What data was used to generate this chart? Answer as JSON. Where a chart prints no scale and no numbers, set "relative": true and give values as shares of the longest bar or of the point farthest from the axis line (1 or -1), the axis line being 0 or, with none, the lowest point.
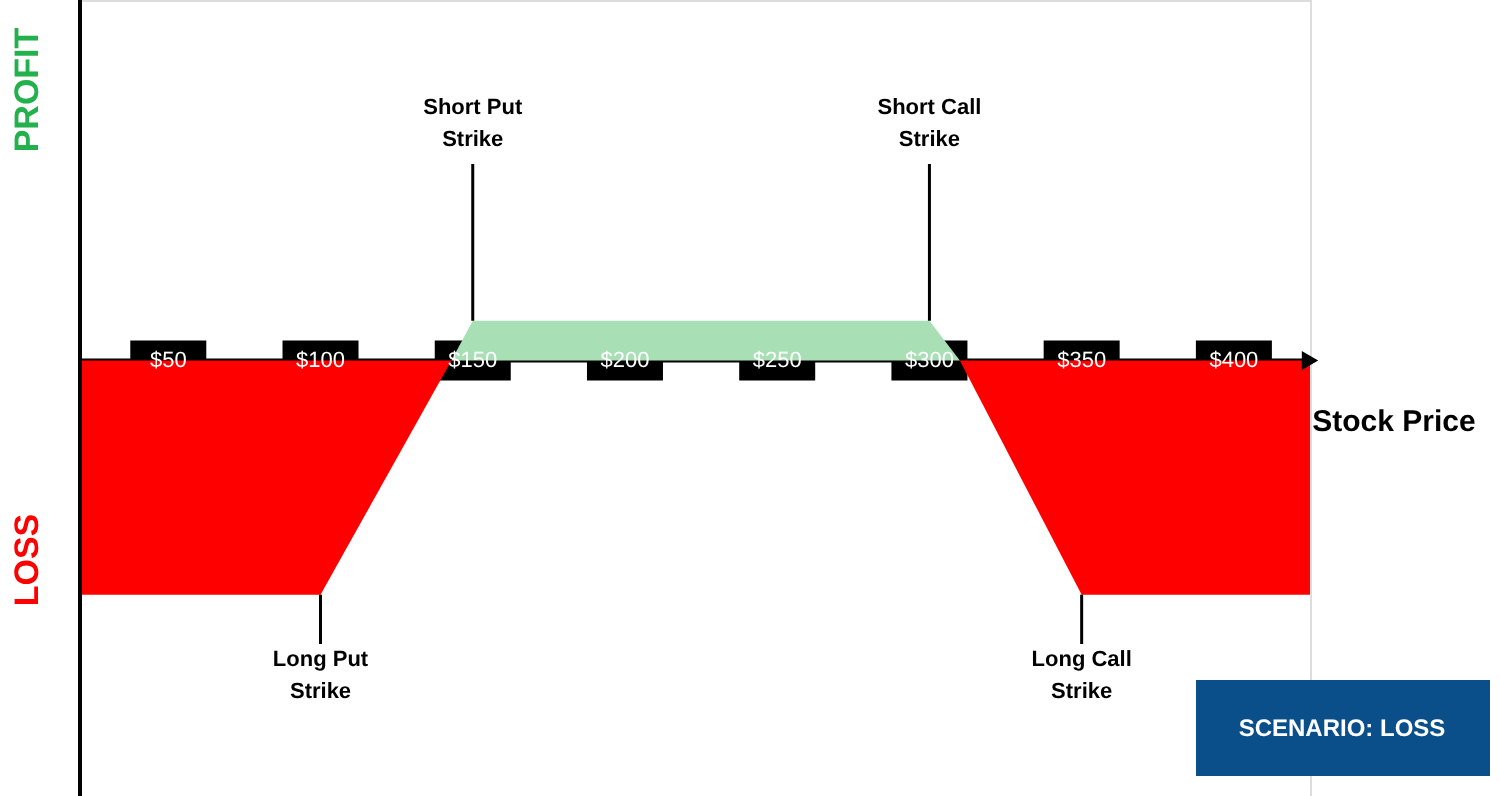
{
  "chart_data": {
    "type": "area",
    "relative": true,
    "xlabel": "Stock Price",
    "xlim": [
      21,
      425
    ],
    "xticks": [
      {
        "value": 50,
        "label": "$50"
      },
      {
        "value": 100,
        "label": "$100"
      },
      {
        "value": 150,
        "label": "$150"
      },
      {
        "value": 200,
        "label": "$200"
      },
      {
        "value": 250,
        "label": "$250"
      },
      {
        "value": 300,
        "label": "$300"
      },
      {
        "value": 350,
        "label": "$350"
      },
      {
        "value": 400,
        "label": "$400"
      }
    ],
    "series": [
      {
        "color": "#ff0000",
        "x": [
          21,
          100,
          143
        ],
        "values": [
          -1,
          -1,
          0
        ]
      },
      {
        "color": "#a9dfb5",
        "x": [
          143,
          150,
          300,
          310
        ],
        "values": [
          0,
          0.17,
          0.17,
          0
        ]
      },
      {
        "color": "#ff0000",
        "x": [
          310,
          350,
          425
        ],
        "values": [
          0,
          -1,
          -1
        ]
      }
    ],
    "annotations": [
      "PROFIT",
      "LOSS",
      "SCENARIO: LOSS",
      {
        "text": "Short Put Strike",
        "x": 150,
        "y": 0.17
      },
      {
        "text": "Short Call Strike",
        "x": 300,
        "y": 0.17
      },
      {
        "text": "Long Put Strike",
        "x": 100,
        "y": -1
      },
      {
        "text": "Long Call Strike",
        "x": 350,
        "y": -1
      }
    ],
    "marker": "none"
  }
}
